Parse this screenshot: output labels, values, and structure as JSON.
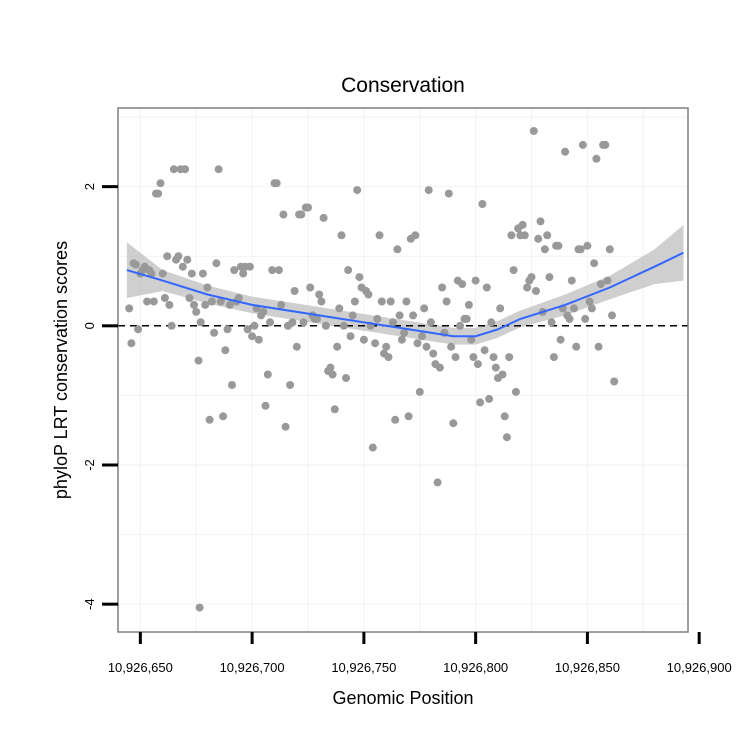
{
  "chart_data": {
    "type": "scatter",
    "title": "Conservation",
    "xlabel": "Genomic Position",
    "ylabel": "phyloP LRT conservation scores",
    "xlim": [
      10926640,
      10926895
    ],
    "ylim": [
      -4.4,
      3.13
    ],
    "x_ticks": [
      10926650,
      10926700,
      10926750,
      10926800,
      10926850,
      10926900
    ],
    "x_tick_labels": [
      "10,926,650",
      "10,926,700",
      "10,926,750",
      "10,926,800",
      "10,926,850",
      "10,926,900"
    ],
    "y_ticks": [
      -4,
      -2,
      0,
      2
    ],
    "y_tick_labels": [
      "-4",
      "-2",
      "0",
      "2"
    ],
    "reference_line": {
      "y": 0,
      "style": "dashed"
    },
    "grid": true,
    "legend": "none",
    "colors": {
      "points": "#999999",
      "trend": "#3366ff",
      "band": "#bfbfbf",
      "frame": "#7f7f7f",
      "reference": "#000000"
    },
    "points": [
      [
        10926645,
        0.25
      ],
      [
        10926646,
        -0.25
      ],
      [
        10926647,
        0.9
      ],
      [
        10926648,
        0.88
      ],
      [
        10926649,
        -0.05
      ],
      [
        10926650,
        0.75
      ],
      [
        10926651,
        0.8
      ],
      [
        10926652,
        0.85
      ],
      [
        10926653,
        0.35
      ],
      [
        10926654,
        0.8
      ],
      [
        10926655,
        0.75
      ],
      [
        10926656,
        0.35
      ],
      [
        10926657,
        1.9
      ],
      [
        10926658,
        1.9
      ],
      [
        10926659,
        2.05
      ],
      [
        10926660,
        0.75
      ],
      [
        10926661,
        0.4
      ],
      [
        10926662,
        1.0
      ],
      [
        10926663,
        0.3
      ],
      [
        10926664,
        0.0
      ],
      [
        10926665,
        2.25
      ],
      [
        10926666,
        0.95
      ],
      [
        10926667,
        1.0
      ],
      [
        10926668,
        2.25
      ],
      [
        10926669,
        0.85
      ],
      [
        10926670,
        2.25
      ],
      [
        10926671,
        0.95
      ],
      [
        10926672,
        0.4
      ],
      [
        10926673,
        0.75
      ],
      [
        10926674,
        0.3
      ],
      [
        10926675,
        0.2
      ],
      [
        10926676,
        -0.5
      ],
      [
        10926676.5,
        -4.05
      ],
      [
        10926677,
        0.05
      ],
      [
        10926678,
        0.75
      ],
      [
        10926679,
        0.3
      ],
      [
        10926680,
        0.55
      ],
      [
        10926681,
        -1.35
      ],
      [
        10926682,
        0.35
      ],
      [
        10926683,
        -0.1
      ],
      [
        10926684,
        0.9
      ],
      [
        10926685,
        2.25
      ],
      [
        10926686,
        0.35
      ],
      [
        10926687,
        -1.3
      ],
      [
        10926688,
        -0.35
      ],
      [
        10926689,
        -0.05
      ],
      [
        10926690,
        0.3
      ],
      [
        10926691,
        -0.85
      ],
      [
        10926692,
        0.8
      ],
      [
        10926693,
        0.35
      ],
      [
        10926694,
        0.4
      ],
      [
        10926695,
        0.85
      ],
      [
        10926696,
        0.75
      ],
      [
        10926697,
        0.85
      ],
      [
        10926698,
        -0.05
      ],
      [
        10926699,
        0.85
      ],
      [
        10926700,
        -0.15
      ],
      [
        10926701,
        0.0
      ],
      [
        10926702,
        0.25
      ],
      [
        10926703,
        -0.2
      ],
      [
        10926704,
        0.15
      ],
      [
        10926705,
        0.2
      ],
      [
        10926706,
        -1.15
      ],
      [
        10926707,
        -0.7
      ],
      [
        10926708,
        0.05
      ],
      [
        10926709,
        0.8
      ],
      [
        10926710,
        2.05
      ],
      [
        10926711,
        2.05
      ],
      [
        10926712,
        0.8
      ],
      [
        10926713,
        0.3
      ],
      [
        10926714,
        1.6
      ],
      [
        10926715,
        -1.45
      ],
      [
        10926716,
        0.0
      ],
      [
        10926717,
        -0.85
      ],
      [
        10926718,
        0.05
      ],
      [
        10926719,
        0.5
      ],
      [
        10926720,
        -0.3
      ],
      [
        10926721,
        1.6
      ],
      [
        10926722,
        1.6
      ],
      [
        10926723,
        0.05
      ],
      [
        10926724,
        1.7
      ],
      [
        10926725,
        1.7
      ],
      [
        10926726,
        0.55
      ],
      [
        10926727,
        0.15
      ],
      [
        10926728,
        0.1
      ],
      [
        10926729,
        0.1
      ],
      [
        10926730,
        0.45
      ],
      [
        10926731,
        0.35
      ],
      [
        10926732,
        1.55
      ],
      [
        10926733,
        0.0
      ],
      [
        10926734,
        -0.65
      ],
      [
        10926735,
        -0.6
      ],
      [
        10926736,
        -0.7
      ],
      [
        10926737,
        -1.2
      ],
      [
        10926738,
        -0.3
      ],
      [
        10926739,
        0.25
      ],
      [
        10926740,
        1.3
      ],
      [
        10926741,
        0.0
      ],
      [
        10926742,
        -0.75
      ],
      [
        10926743,
        0.8
      ],
      [
        10926744,
        -0.15
      ],
      [
        10926745,
        0.15
      ],
      [
        10926746,
        0.35
      ],
      [
        10926747,
        1.95
      ],
      [
        10926748,
        0.7
      ],
      [
        10926749,
        0.55
      ],
      [
        10926750,
        -0.2
      ],
      [
        10926751,
        0.5
      ],
      [
        10926752,
        0.45
      ],
      [
        10926753,
        0.0
      ],
      [
        10926754,
        -1.75
      ],
      [
        10926755,
        -0.25
      ],
      [
        10926756,
        0.1
      ],
      [
        10926757,
        1.3
      ],
      [
        10926758,
        0.35
      ],
      [
        10926759,
        -0.4
      ],
      [
        10926760,
        -0.3
      ],
      [
        10926761,
        -0.45
      ],
      [
        10926762,
        0.35
      ],
      [
        10926763,
        0.05
      ],
      [
        10926764,
        -1.35
      ],
      [
        10926765,
        1.1
      ],
      [
        10926766,
        0.15
      ],
      [
        10926767,
        -0.2
      ],
      [
        10926768,
        -0.1
      ],
      [
        10926769,
        0.35
      ],
      [
        10926770,
        -1.3
      ],
      [
        10926771,
        1.25
      ],
      [
        10926772,
        0.15
      ],
      [
        10926773,
        1.3
      ],
      [
        10926774,
        -0.25
      ],
      [
        10926775,
        -0.95
      ],
      [
        10926776,
        -0.15
      ],
      [
        10926777,
        0.25
      ],
      [
        10926778,
        -0.3
      ],
      [
        10926779,
        1.95
      ],
      [
        10926780,
        0.05
      ],
      [
        10926781,
        -0.4
      ],
      [
        10926782,
        -0.55
      ],
      [
        10926783,
        -2.25
      ],
      [
        10926784,
        -0.6
      ],
      [
        10926785,
        0.55
      ],
      [
        10926786,
        -0.1
      ],
      [
        10926787,
        0.35
      ],
      [
        10926788,
        1.9
      ],
      [
        10926789,
        -0.3
      ],
      [
        10926790,
        -1.4
      ],
      [
        10926791,
        -0.45
      ],
      [
        10926792,
        0.65
      ],
      [
        10926793,
        0.0
      ],
      [
        10926794,
        0.6
      ],
      [
        10926795,
        0.1
      ],
      [
        10926796,
        0.1
      ],
      [
        10926797,
        0.3
      ],
      [
        10926798,
        -0.2
      ],
      [
        10926799,
        -0.45
      ],
      [
        10926800,
        0.65
      ],
      [
        10926801,
        -0.55
      ],
      [
        10926802,
        -1.1
      ],
      [
        10926803,
        1.75
      ],
      [
        10926804,
        -0.35
      ],
      [
        10926805,
        0.55
      ],
      [
        10926806,
        -1.05
      ],
      [
        10926807,
        0.05
      ],
      [
        10926808,
        -0.45
      ],
      [
        10926809,
        -0.6
      ],
      [
        10926810,
        -0.75
      ],
      [
        10926811,
        0.25
      ],
      [
        10926812,
        -0.7
      ],
      [
        10926813,
        -1.3
      ],
      [
        10926814,
        -1.6
      ],
      [
        10926815,
        -0.45
      ],
      [
        10926816,
        1.3
      ],
      [
        10926817,
        0.8
      ],
      [
        10926818,
        -0.95
      ],
      [
        10926819,
        1.4
      ],
      [
        10926820,
        1.3
      ],
      [
        10926821,
        1.45
      ],
      [
        10926822,
        1.3
      ],
      [
        10926823,
        0.55
      ],
      [
        10926824,
        0.65
      ],
      [
        10926825,
        0.7
      ],
      [
        10926826,
        2.8
      ],
      [
        10926827,
        0.5
      ],
      [
        10926828,
        1.25
      ],
      [
        10926829,
        1.5
      ],
      [
        10926830,
        0.2
      ],
      [
        10926831,
        1.1
      ],
      [
        10926832,
        1.3
      ],
      [
        10926833,
        0.7
      ],
      [
        10926834,
        0.05
      ],
      [
        10926835,
        -0.45
      ],
      [
        10926836,
        1.15
      ],
      [
        10926837,
        1.15
      ],
      [
        10926838,
        -0.2
      ],
      [
        10926839,
        0.25
      ],
      [
        10926840,
        2.5
      ],
      [
        10926841,
        0.15
      ],
      [
        10926842,
        0.1
      ],
      [
        10926843,
        0.65
      ],
      [
        10926844,
        0.25
      ],
      [
        10926845,
        -0.3
      ],
      [
        10926846,
        1.1
      ],
      [
        10926847,
        1.1
      ],
      [
        10926848,
        2.6
      ],
      [
        10926849,
        0.1
      ],
      [
        10926850,
        1.15
      ],
      [
        10926851,
        0.35
      ],
      [
        10926852,
        0.25
      ],
      [
        10926853,
        0.9
      ],
      [
        10926854,
        2.4
      ],
      [
        10926855,
        -0.3
      ],
      [
        10926856,
        0.6
      ],
      [
        10926857,
        2.6
      ],
      [
        10926858,
        2.6
      ],
      [
        10926859,
        0.65
      ],
      [
        10926860,
        1.1
      ],
      [
        10926861,
        0.15
      ],
      [
        10926862,
        -0.8
      ]
    ],
    "trend": {
      "x": [
        10926644,
        10926660,
        10926680,
        10926700,
        10926720,
        10926740,
        10926760,
        10926780,
        10926790,
        10926800,
        10926810,
        10926820,
        10926840,
        10926860,
        10926880,
        10926893
      ],
      "y": [
        0.8,
        0.65,
        0.45,
        0.3,
        0.2,
        0.1,
        0.0,
        -0.1,
        -0.15,
        -0.15,
        -0.05,
        0.1,
        0.3,
        0.55,
        0.85,
        1.05
      ]
    },
    "confidence_band": {
      "x": [
        10926644,
        10926660,
        10926680,
        10926700,
        10926720,
        10926740,
        10926760,
        10926780,
        10926790,
        10926800,
        10926810,
        10926820,
        10926840,
        10926860,
        10926880,
        10926893
      ],
      "upper": [
        1.2,
        0.8,
        0.58,
        0.42,
        0.32,
        0.22,
        0.12,
        0.02,
        -0.03,
        -0.03,
        0.07,
        0.22,
        0.45,
        0.72,
        1.1,
        1.45
      ],
      "lower": [
        0.4,
        0.5,
        0.32,
        0.18,
        0.08,
        -0.02,
        -0.12,
        -0.22,
        -0.27,
        -0.27,
        -0.17,
        -0.02,
        0.15,
        0.38,
        0.6,
        0.65
      ]
    }
  }
}
